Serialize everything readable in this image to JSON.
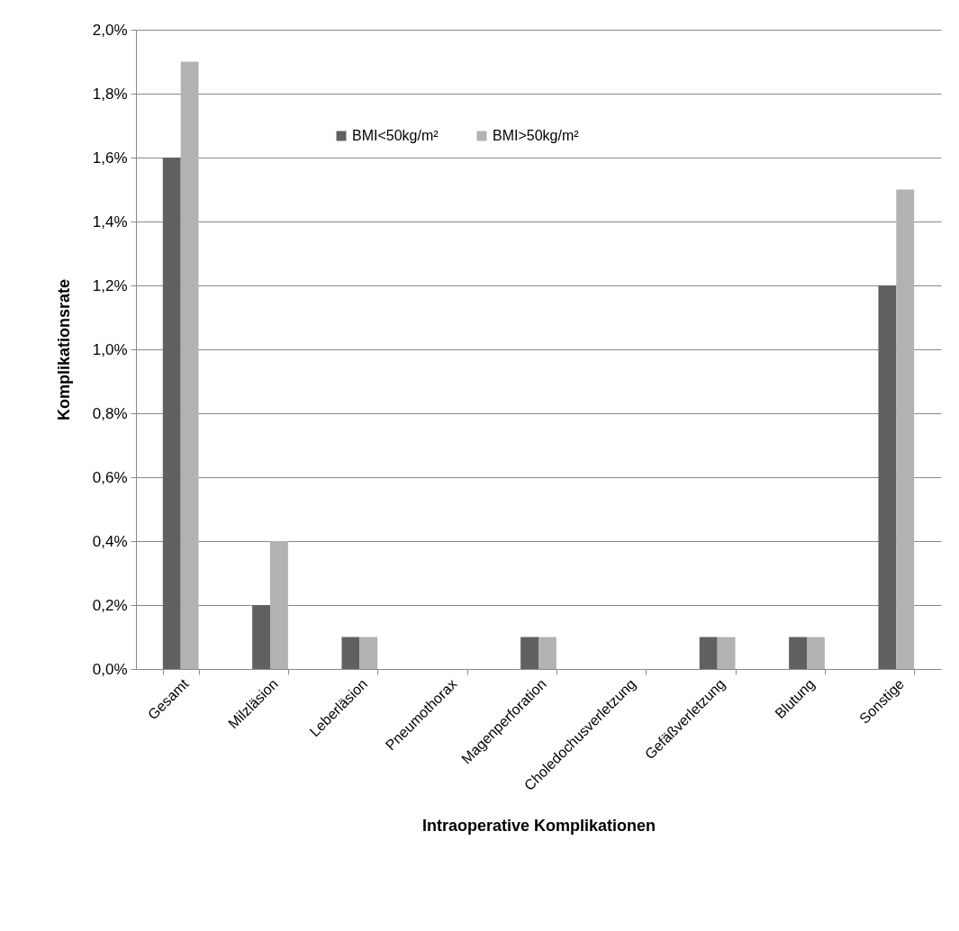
{
  "chart_data": {
    "type": "bar",
    "xlabel": "Intraoperative Komplikationen",
    "ylabel": "Komplikationsrate",
    "categories": [
      "Gesamt",
      "Milzläsion",
      "Leberläsion",
      "Pneumothorax",
      "Magenperforation",
      "Choledochusverletzung",
      "Gefäßverletzung",
      "Blutung",
      "Sonstige"
    ],
    "series": [
      {
        "name": "BMI<50kg/m²",
        "color": "#606060",
        "values": [
          1.6,
          0.2,
          0.1,
          0,
          0.1,
          0,
          0.1,
          0.1,
          1.2
        ]
      },
      {
        "name": "BMI>50kg/m²",
        "color": "#b2b2b2",
        "values": [
          1.9,
          0.4,
          0.1,
          0,
          0.1,
          0,
          0.1,
          0.1,
          1.5
        ]
      }
    ],
    "ylim": [
      0,
      2
    ],
    "yticks": [
      {
        "value": 0,
        "label": "0,0%"
      },
      {
        "value": 0.2,
        "label": "0,2%"
      },
      {
        "value": 0.4,
        "label": "0,4%"
      },
      {
        "value": 0.6,
        "label": "0,6%"
      },
      {
        "value": 0.8,
        "label": "0,8%"
      },
      {
        "value": 1,
        "label": "1,0%"
      },
      {
        "value": 1.2,
        "label": "1,2%"
      },
      {
        "value": 1.4,
        "label": "1,4%"
      },
      {
        "value": 1.6,
        "label": "1,6%"
      },
      {
        "value": 1.8,
        "label": "1,8%"
      },
      {
        "value": 2,
        "label": "2,0%"
      }
    ],
    "grid": "y",
    "legend": "top"
  }
}
